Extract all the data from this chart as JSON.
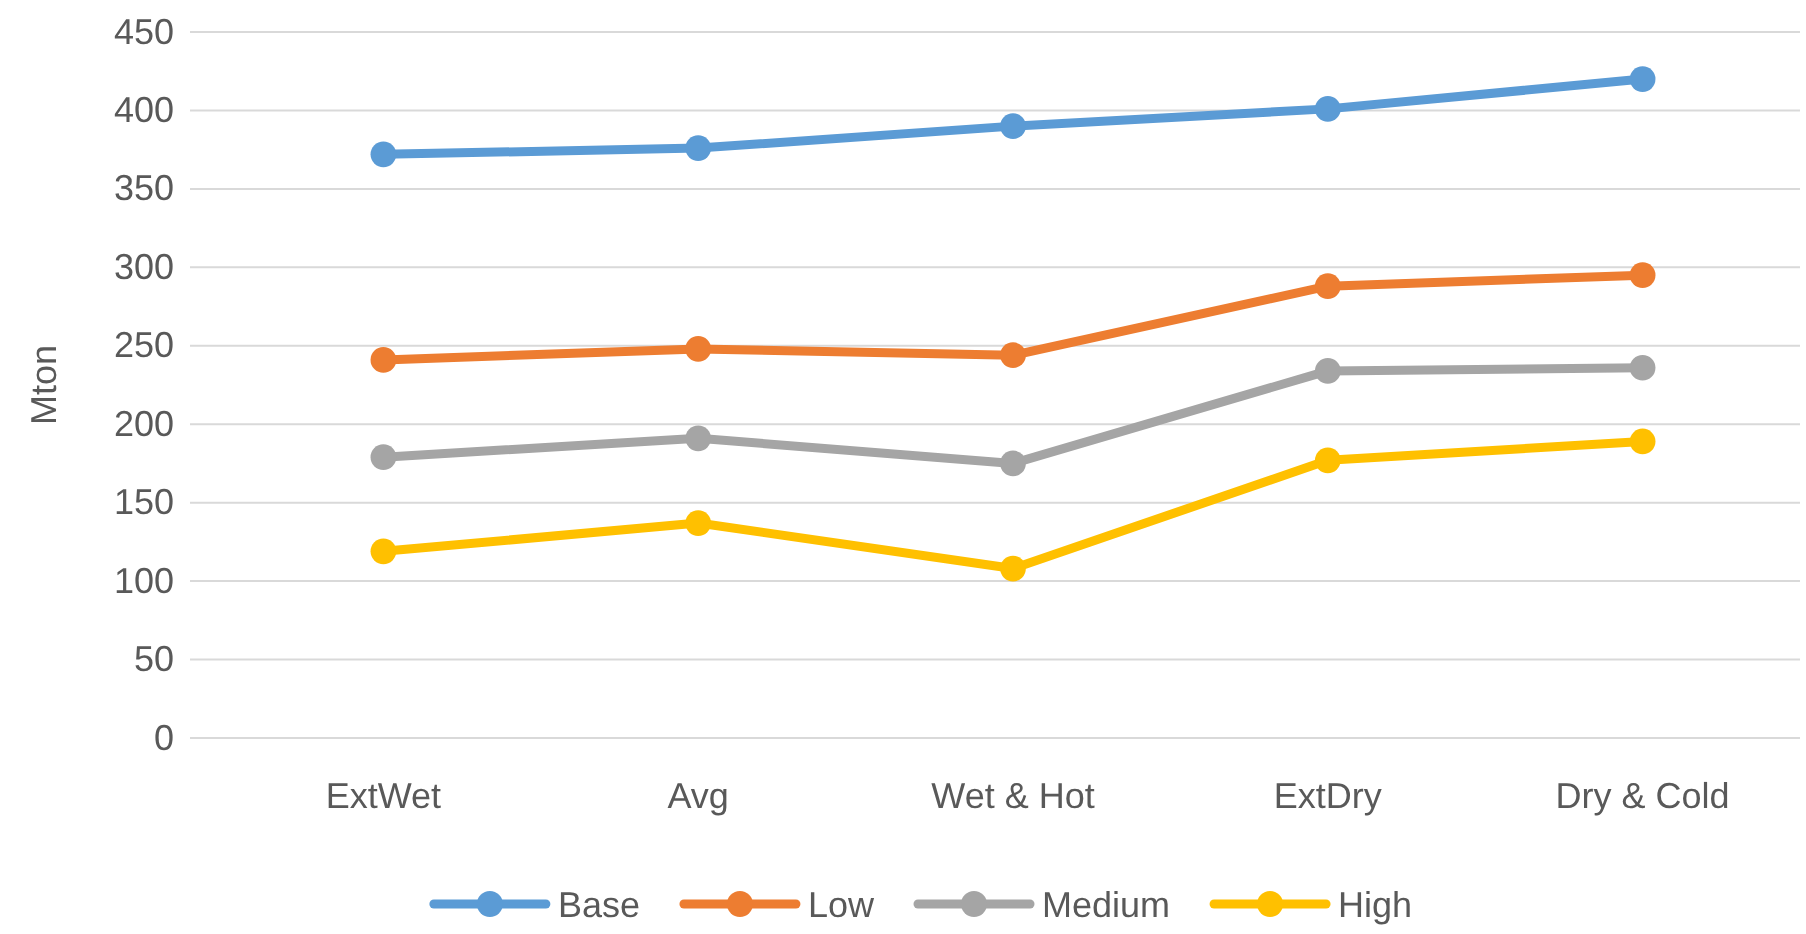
{
  "chart_data": {
    "type": "line",
    "ylabel": "Mton",
    "categories": [
      "ExtWet",
      "Avg",
      "Wet & Hot",
      "ExtDry",
      "Dry & Cold"
    ],
    "series": [
      {
        "name": "Base",
        "color": "#5b9bd5",
        "values": [
          372,
          376,
          390,
          401,
          420
        ]
      },
      {
        "name": "Low",
        "color": "#ed7d31",
        "values": [
          241,
          248,
          244,
          288,
          295
        ]
      },
      {
        "name": "Medium",
        "color": "#a5a5a5",
        "values": [
          179,
          191,
          175,
          234,
          236
        ]
      },
      {
        "name": "High",
        "color": "#ffc000",
        "values": [
          119,
          137,
          108,
          177,
          189
        ]
      }
    ],
    "ylim": [
      0,
      450
    ],
    "yticks": [
      0,
      50,
      100,
      150,
      200,
      250,
      300,
      350,
      400,
      450
    ],
    "grid": "y",
    "legend": "bottom",
    "marker": "circle",
    "line_style": "solid"
  }
}
